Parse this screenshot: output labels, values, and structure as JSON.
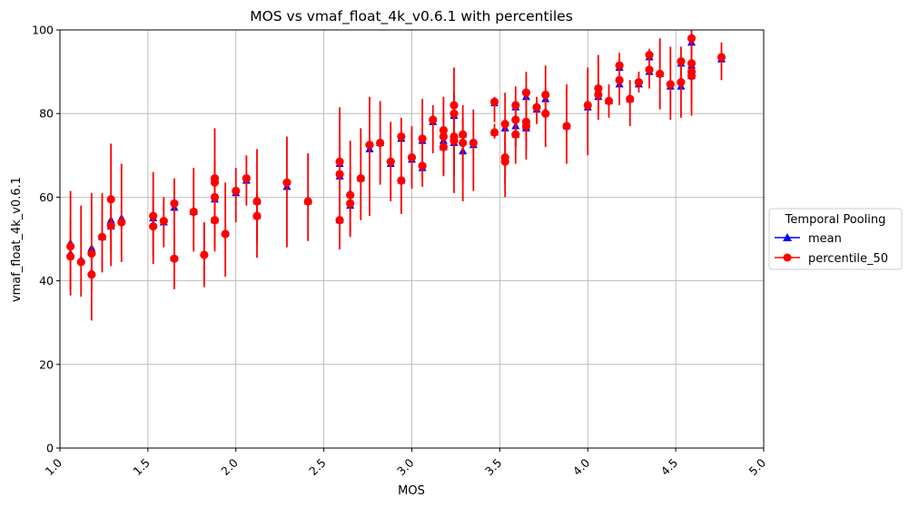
{
  "chart_data": {
    "type": "scatter",
    "title": "MOS vs vmaf_float_4k_v0.6.1 with percentiles",
    "xlabel": "MOS",
    "ylabel": "vmaf_float_4k_v0.6.1",
    "xlim": [
      1.0,
      5.0
    ],
    "ylim": [
      0,
      100
    ],
    "xticks": [
      "1.0",
      "1.5",
      "2.0",
      "2.5",
      "3.0",
      "3.5",
      "4.0",
      "4.5",
      "5.0"
    ],
    "yticks": [
      "0",
      "20",
      "40",
      "60",
      "80",
      "100"
    ],
    "grid": true,
    "legend": {
      "title": "Temporal Pooling",
      "placement": "outside-right",
      "entries": [
        "mean",
        "percentile_50"
      ]
    },
    "series": [
      {
        "name": "mean",
        "color": "#0000ff",
        "marker": "triangle",
        "points": [
          [
            1.06,
            49.0
          ],
          [
            1.06,
            46.5
          ],
          [
            1.12,
            45.0
          ],
          [
            1.18,
            47.8
          ],
          [
            1.18,
            42.0
          ],
          [
            1.24,
            50.5
          ],
          [
            1.29,
            54.5
          ],
          [
            1.29,
            53.0
          ],
          [
            1.35,
            55.0
          ],
          [
            1.53,
            55.0
          ],
          [
            1.53,
            53.5
          ],
          [
            1.59,
            54.0
          ],
          [
            1.65,
            57.5
          ],
          [
            1.65,
            45.5
          ],
          [
            1.76,
            56.5
          ],
          [
            1.82,
            46.5
          ],
          [
            1.88,
            64.0
          ],
          [
            1.88,
            59.5
          ],
          [
            1.88,
            54.5
          ],
          [
            1.94,
            51.5
          ],
          [
            2.0,
            61.0
          ],
          [
            2.06,
            64.0
          ],
          [
            2.12,
            59.0
          ],
          [
            2.12,
            55.5
          ],
          [
            2.29,
            62.5
          ],
          [
            2.41,
            59.0
          ],
          [
            2.59,
            65.0
          ],
          [
            2.59,
            68.0
          ],
          [
            2.59,
            54.5
          ],
          [
            2.65,
            61.0
          ],
          [
            2.65,
            58.0
          ],
          [
            2.71,
            64.5
          ],
          [
            2.76,
            71.5
          ],
          [
            2.82,
            73.0
          ],
          [
            2.88,
            68.0
          ],
          [
            2.94,
            74.0
          ],
          [
            2.94,
            64.0
          ],
          [
            3.0,
            69.0
          ],
          [
            3.06,
            73.5
          ],
          [
            3.06,
            67.0
          ],
          [
            3.12,
            78.0
          ],
          [
            3.18,
            75.5
          ],
          [
            3.18,
            73.5
          ],
          [
            3.18,
            72.0
          ],
          [
            3.24,
            79.5
          ],
          [
            3.24,
            74.0
          ],
          [
            3.24,
            73.0
          ],
          [
            3.29,
            71.0
          ],
          [
            3.29,
            75.0
          ],
          [
            3.35,
            72.5
          ],
          [
            3.47,
            82.5
          ],
          [
            3.47,
            75.5
          ],
          [
            3.53,
            76.5
          ],
          [
            3.53,
            69.5
          ],
          [
            3.59,
            77.0
          ],
          [
            3.59,
            81.5
          ],
          [
            3.59,
            75.0
          ],
          [
            3.65,
            84.0
          ],
          [
            3.65,
            77.0
          ],
          [
            3.65,
            76.5
          ],
          [
            3.71,
            81.0
          ],
          [
            3.76,
            83.5
          ],
          [
            3.76,
            80.5
          ],
          [
            3.88,
            77.0
          ],
          [
            4.0,
            81.5
          ],
          [
            4.06,
            85.5
          ],
          [
            4.06,
            84.0
          ],
          [
            4.12,
            83.0
          ],
          [
            4.18,
            91.0
          ],
          [
            4.18,
            87.0
          ],
          [
            4.24,
            83.5
          ],
          [
            4.29,
            87.0
          ],
          [
            4.35,
            93.5
          ],
          [
            4.35,
            90.0
          ],
          [
            4.41,
            89.5
          ],
          [
            4.47,
            86.5
          ],
          [
            4.53,
            92.0
          ],
          [
            4.53,
            86.5
          ],
          [
            4.59,
            97.0
          ],
          [
            4.59,
            89.0
          ],
          [
            4.59,
            91.5
          ],
          [
            4.76,
            93.0
          ]
        ]
      },
      {
        "name": "percentile_50",
        "color": "#ff0000",
        "marker": "circle",
        "points": [
          [
            1.06,
            48.2,
            38.0,
            61.5
          ],
          [
            1.06,
            45.8,
            36.5,
            55.0
          ],
          [
            1.12,
            44.5,
            36.2,
            58.0
          ],
          [
            1.18,
            46.5,
            37.5,
            61.0
          ],
          [
            1.18,
            41.5,
            30.5,
            48.5
          ],
          [
            1.24,
            50.5,
            42.0,
            61.0
          ],
          [
            1.29,
            59.5,
            47.0,
            72.8
          ],
          [
            1.29,
            53.2,
            43.5,
            58.0
          ],
          [
            1.35,
            54.0,
            44.5,
            68.0
          ],
          [
            1.53,
            55.5,
            44.0,
            66.0
          ],
          [
            1.53,
            53.0,
            46.0,
            60.0
          ],
          [
            1.59,
            54.3,
            48.0,
            60.0
          ],
          [
            1.65,
            58.5,
            46.0,
            64.5
          ],
          [
            1.65,
            45.3,
            38.0,
            50.0
          ],
          [
            1.76,
            56.5,
            47.0,
            67.0
          ],
          [
            1.82,
            46.2,
            38.5,
            54.0
          ],
          [
            1.88,
            64.5,
            52.0,
            76.5
          ],
          [
            1.88,
            63.5,
            54.0,
            69.0
          ],
          [
            1.88,
            60.0,
            48.0,
            67.0
          ],
          [
            1.88,
            54.5,
            47.0,
            60.0
          ],
          [
            1.94,
            51.2,
            41.0,
            63.5
          ],
          [
            2.0,
            61.5,
            54.0,
            67.0
          ],
          [
            2.06,
            64.5,
            58.0,
            70.0
          ],
          [
            2.12,
            59.0,
            49.0,
            71.5
          ],
          [
            2.12,
            55.5,
            45.5,
            61.0
          ],
          [
            2.29,
            63.5,
            48.0,
            74.5
          ],
          [
            2.41,
            59.0,
            49.5,
            70.5
          ],
          [
            2.59,
            68.5,
            55.0,
            81.5
          ],
          [
            2.59,
            65.5,
            57.0,
            74.0
          ],
          [
            2.59,
            54.5,
            47.5,
            62.0
          ],
          [
            2.65,
            60.5,
            50.5,
            73.5
          ],
          [
            2.65,
            58.5,
            51.0,
            66.0
          ],
          [
            2.71,
            64.5,
            54.5,
            76.5
          ],
          [
            2.76,
            72.5,
            55.5,
            84.0
          ],
          [
            2.82,
            73.0,
            63.0,
            83.0
          ],
          [
            2.88,
            68.5,
            59.0,
            78.0
          ],
          [
            2.94,
            74.5,
            66.0,
            79.0
          ],
          [
            2.94,
            64.0,
            56.0,
            70.0
          ],
          [
            3.0,
            69.5,
            62.0,
            77.0
          ],
          [
            3.06,
            74.0,
            64.0,
            83.5
          ],
          [
            3.06,
            67.5,
            62.5,
            73.0
          ],
          [
            3.12,
            78.5,
            70.5,
            82.0
          ],
          [
            3.18,
            76.0,
            66.0,
            84.0
          ],
          [
            3.18,
            74.5,
            65.5,
            80.0
          ],
          [
            3.18,
            72.0,
            65.0,
            77.0
          ],
          [
            3.24,
            82.0,
            70.5,
            91.0
          ],
          [
            3.24,
            80.0,
            70.0,
            85.0
          ],
          [
            3.24,
            74.5,
            61.0,
            82.0
          ],
          [
            3.24,
            73.5,
            65.0,
            79.0
          ],
          [
            3.29,
            75.0,
            59.0,
            82.0
          ],
          [
            3.29,
            73.0,
            64.0,
            79.0
          ],
          [
            3.35,
            73.0,
            61.5,
            81.0
          ],
          [
            3.47,
            82.8,
            78.0,
            84.0
          ],
          [
            3.47,
            75.5,
            74.0,
            77.5
          ],
          [
            3.53,
            77.5,
            72.0,
            85.0
          ],
          [
            3.53,
            69.5,
            63.0,
            72.0
          ],
          [
            3.53,
            68.5,
            60.0,
            75.0
          ],
          [
            3.59,
            82.0,
            72.0,
            86.5
          ],
          [
            3.59,
            78.5,
            72.0,
            82.0
          ],
          [
            3.59,
            75.0,
            68.0,
            83.0
          ],
          [
            3.65,
            85.0,
            80.0,
            90.0
          ],
          [
            3.65,
            78.0,
            69.0,
            84.0
          ],
          [
            3.65,
            77.0,
            71.5,
            80.0
          ],
          [
            3.71,
            81.5,
            77.5,
            84.0
          ],
          [
            3.76,
            84.5,
            79.0,
            91.5
          ],
          [
            3.76,
            80.0,
            72.0,
            86.0
          ],
          [
            3.88,
            77.0,
            68.0,
            87.0
          ],
          [
            4.0,
            82.0,
            70.0,
            91.0
          ],
          [
            4.06,
            86.0,
            78.5,
            94.0
          ],
          [
            4.06,
            84.5,
            80.0,
            88.5
          ],
          [
            4.12,
            83.0,
            79.0,
            87.0
          ],
          [
            4.18,
            91.5,
            86.0,
            94.5
          ],
          [
            4.18,
            88.0,
            82.0,
            92.5
          ],
          [
            4.24,
            83.5,
            77.0,
            88.0
          ],
          [
            4.29,
            87.5,
            85.0,
            90.0
          ],
          [
            4.35,
            94.0,
            88.0,
            95.5
          ],
          [
            4.35,
            90.5,
            86.0,
            93.0
          ],
          [
            4.41,
            89.5,
            81.0,
            98.0
          ],
          [
            4.47,
            87.0,
            78.5,
            96.0
          ],
          [
            4.53,
            92.5,
            86.0,
            96.0
          ],
          [
            4.53,
            87.5,
            79.0,
            92.0
          ],
          [
            4.59,
            98.0,
            95.0,
            100.0
          ],
          [
            4.59,
            92.0,
            86.0,
            98.0
          ],
          [
            4.59,
            90.0,
            79.5,
            96.0
          ],
          [
            4.59,
            89.0,
            82.0,
            93.0
          ],
          [
            4.76,
            93.5,
            88.0,
            97.0
          ]
        ]
      }
    ]
  }
}
